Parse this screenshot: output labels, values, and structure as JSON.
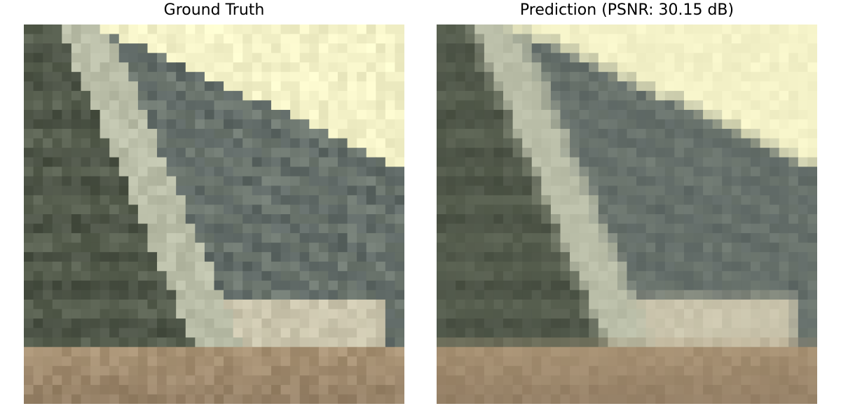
{
  "figure": {
    "panels": [
      {
        "title": "Ground Truth"
      },
      {
        "title": "Prediction (PSNR: 30.15 dB)"
      }
    ]
  },
  "scene": {
    "description_colors": {
      "sky": "#f4f2c8",
      "stone_dark": "#5f6a5c",
      "stone_mid": "#7d8679",
      "stone_light": "#c7c4ae",
      "ground": "#a48d70"
    }
  }
}
